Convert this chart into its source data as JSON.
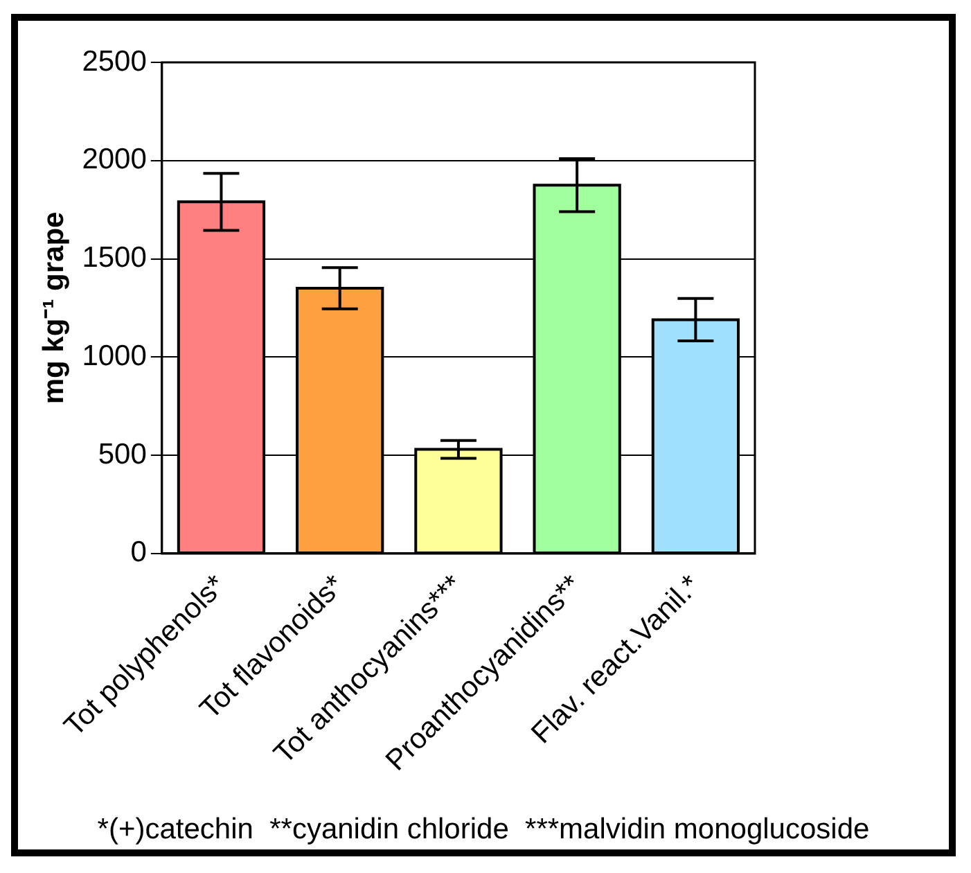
{
  "chart_data": {
    "type": "bar",
    "ylabel": "mg kg⁻¹ grape",
    "categories": [
      "Tot polyphenols*",
      "Tot flavonoids*",
      "Tot anthocyanins***",
      "Proanthocyanidins**",
      "Flav. react.Vanil.*"
    ],
    "values": [
      1790,
      1350,
      530,
      1875,
      1190
    ],
    "errors": [
      145,
      105,
      45,
      135,
      108
    ],
    "colors": [
      "#ff8080",
      "#ffa040",
      "#ffff99",
      "#a0ff9c",
      "#a0e0ff"
    ],
    "ylim": [
      0,
      2500
    ],
    "yticks": [
      0,
      500,
      1000,
      1500,
      2000,
      2500
    ],
    "grid": "y",
    "legend": false,
    "annotations": [
      "*(+)catechin  **cyanidin chloride  ***malvidin monoglucoside"
    ]
  }
}
